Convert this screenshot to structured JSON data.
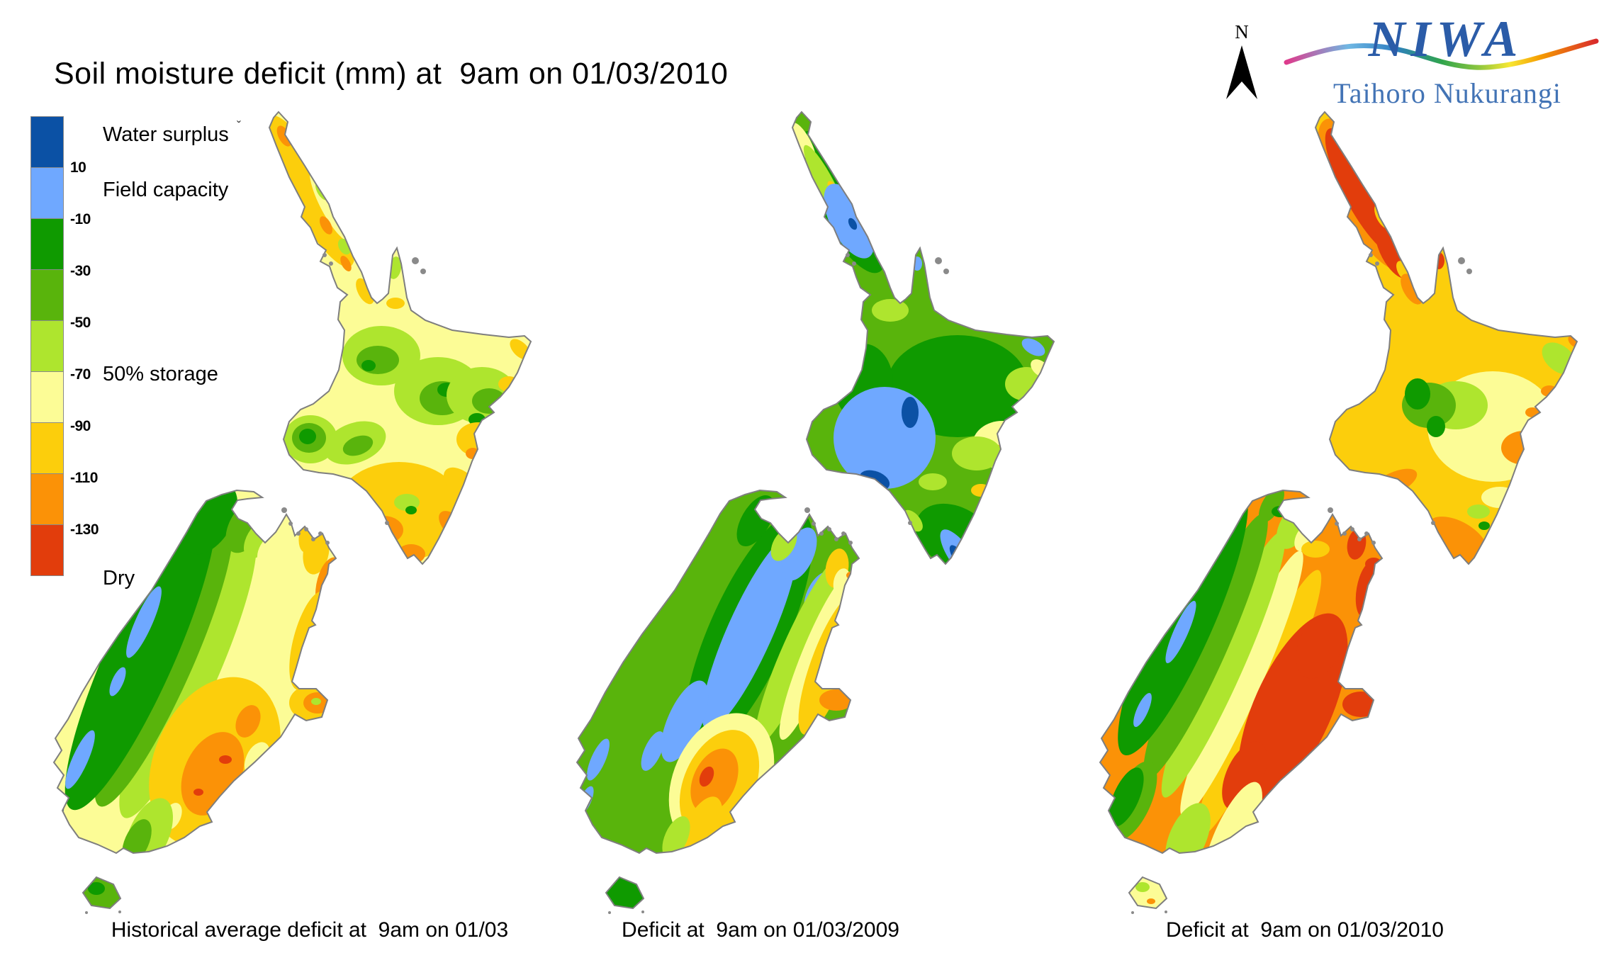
{
  "title": "Soil moisture deficit (mm) at  9am on 01/03/2010",
  "north": {
    "label": "N"
  },
  "logo": {
    "name": "NIWA",
    "subtitle": "Taihoro Nukurangi",
    "name_color": "#2B5CA8",
    "subtitle_color": "#4273B5",
    "wave_colors": [
      "#DE3A8C",
      "#6FB7E3",
      "#2E7FC2",
      "#2FA44D",
      "#8CC63F",
      "#F7E733",
      "#F59C00",
      "#D92B2B"
    ]
  },
  "legend": {
    "stray_mark": "ˇ",
    "labels": {
      "water_surplus": "Water surplus",
      "field_capacity": "Field capacity",
      "storage_50": "50% storage",
      "dry": "Dry"
    },
    "ticks": [
      "10",
      "-10",
      "-30",
      "-50",
      "-70",
      "-90",
      "-110",
      "-130"
    ],
    "blocks": [
      {
        "name": "water-surplus",
        "color": "#0B51A5"
      },
      {
        "name": "field-capacity",
        "color": "#6FA8FF"
      },
      {
        "name": "deficit-10-30",
        "color": "#0F9A00"
      },
      {
        "name": "deficit-30-50",
        "color": "#59B40C"
      },
      {
        "name": "deficit-50-70",
        "color": "#AEE52E"
      },
      {
        "name": "deficit-70-90",
        "color": "#FCFC96"
      },
      {
        "name": "deficit-90-110",
        "color": "#FCCE0C"
      },
      {
        "name": "deficit-110-130",
        "color": "#FB9207"
      },
      {
        "name": "dry",
        "color": "#E23D0C"
      }
    ]
  },
  "maps": [
    {
      "caption": "Historical average deficit at  9am on 01/03"
    },
    {
      "caption": "Deficit at  9am on 01/03/2009"
    },
    {
      "caption": "Deficit at  9am on 01/03/2010"
    }
  ],
  "colors": {
    "coastline": "#7E7E7E",
    "islet": "#8A8A8A"
  }
}
